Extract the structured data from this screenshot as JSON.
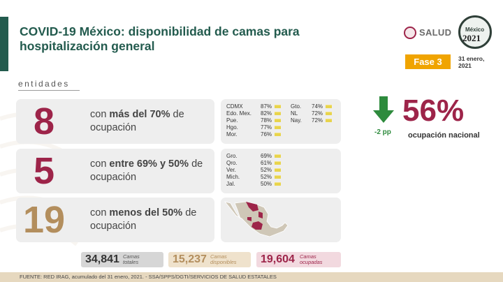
{
  "header": {
    "title": "COVID-19 México: disponibilidad de camas para hospitalización general",
    "salud_logo_text": "SALUD",
    "mexico_logo_word": "México",
    "mexico_logo_year": "2021",
    "fase_label": "Fase 3",
    "fecha": "31 enero, 2021"
  },
  "section_label": "entidades",
  "categories": [
    {
      "number": "8",
      "pre": "con ",
      "bold": "más del 70%",
      "post": " de ocupación",
      "color": "#9d2449"
    },
    {
      "number": "5",
      "pre": "con ",
      "bold": "entre 69% y 50%",
      "post": " de ocupación",
      "color": "#9d2449"
    },
    {
      "number": "19",
      "pre": "con ",
      "bold": "menos del 50%",
      "post": " de ocupación",
      "color": "#b38e5d"
    }
  ],
  "states_high_col1": [
    {
      "name": "CDMX",
      "pct": "87%"
    },
    {
      "name": "Edo. Mex.",
      "pct": "82%"
    },
    {
      "name": "Pue.",
      "pct": "78%"
    },
    {
      "name": "Hgo.",
      "pct": "77%"
    },
    {
      "name": "Mor.",
      "pct": "76%"
    }
  ],
  "states_high_col2": [
    {
      "name": "Gto.",
      "pct": "74%"
    },
    {
      "name": "NL",
      "pct": "72%"
    },
    {
      "name": "Nay.",
      "pct": "72%"
    }
  ],
  "states_mid": [
    {
      "name": "Gro.",
      "pct": "69%"
    },
    {
      "name": "Qro.",
      "pct": "61%"
    },
    {
      "name": "Ver.",
      "pct": "52%"
    },
    {
      "name": "Mich.",
      "pct": "52%"
    },
    {
      "name": "Jal.",
      "pct": "50%"
    }
  ],
  "national": {
    "value": "56%",
    "label": "ocupación nacional",
    "change": "-2 pp",
    "arrow_color": "#2e8b3d"
  },
  "totals": [
    {
      "value": "34,841",
      "label1": "Camas",
      "label2": "totales"
    },
    {
      "value": "15,237",
      "label1": "Camas",
      "label2": "disponibles"
    },
    {
      "value": "19,604",
      "label1": "Camas",
      "label2": "ocupadas"
    }
  ],
  "footer": "FUENTE: RED IRAG, acumulado del 31 enero, 2021. - SSA/SPPS/DGTI/SERVICIOS DE SALUD ESTATALES",
  "colors": {
    "brand_green": "#235b4e",
    "guinda": "#9d2449",
    "gold": "#b38e5d",
    "fase": "#f0a400"
  }
}
